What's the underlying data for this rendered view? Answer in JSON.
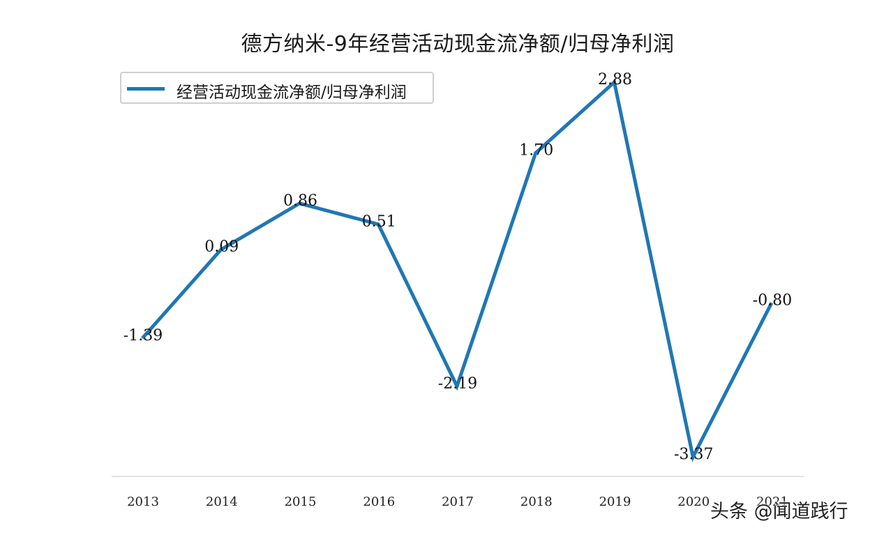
{
  "chart_data": {
    "type": "line",
    "title": "德方纳米-9年经营活动现金流净额/归母净利润",
    "xlabel": "",
    "ylabel": "",
    "categories": [
      "2013",
      "2014",
      "2015",
      "2016",
      "2017",
      "2018",
      "2019",
      "2020",
      "2021"
    ],
    "series": [
      {
        "name": "经营活动现金流净额/归母净利润",
        "values": [
          -1.39,
          0.09,
          0.86,
          0.51,
          -2.19,
          1.7,
          2.88,
          -3.37,
          -0.8
        ],
        "value_labels": [
          "-1.39",
          "0.09",
          "0.86",
          "0.51",
          "-2.19",
          "1.70",
          "2.88",
          "-3.37",
          "-0.80"
        ]
      }
    ],
    "ylim": [
      -3.37,
      2.88
    ],
    "grid": false,
    "legend": "top-left",
    "line_color": "#1f77b4"
  },
  "watermark": "头条 @闻道践行"
}
